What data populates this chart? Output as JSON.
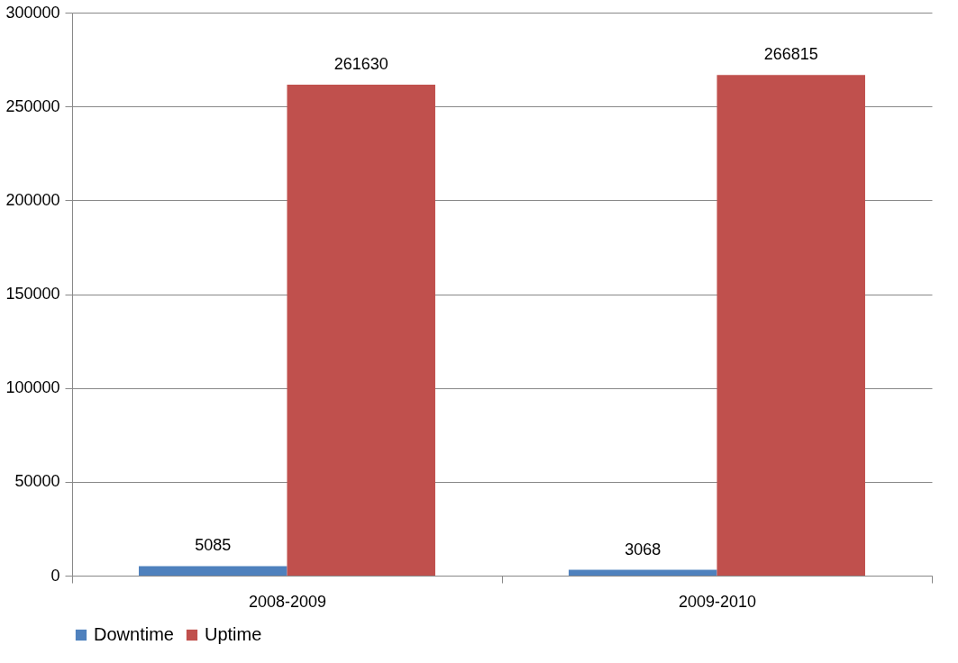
{
  "chart_data": {
    "type": "bar",
    "categories": [
      "2008-2009",
      "2009-2010"
    ],
    "series": [
      {
        "name": "Downtime",
        "color": "#4f81bd",
        "values": [
          5085,
          3068
        ]
      },
      {
        "name": "Uptime",
        "color": "#c0504d",
        "values": [
          261630,
          266815
        ]
      }
    ],
    "ylim": [
      0,
      300000
    ],
    "yticks": [
      0,
      50000,
      100000,
      150000,
      200000,
      250000,
      300000
    ],
    "grid": "y",
    "legend": "bottom",
    "data_labels": true
  }
}
